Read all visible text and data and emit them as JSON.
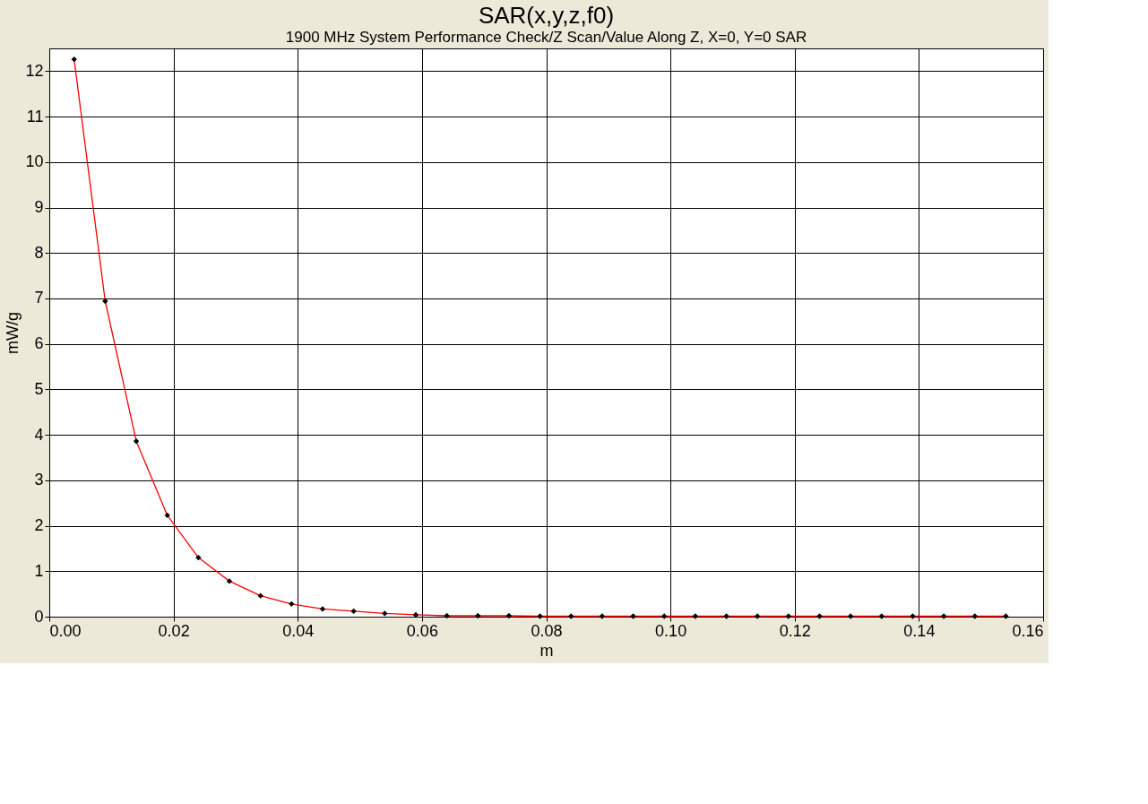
{
  "chart_data": {
    "type": "line",
    "title": "SAR(x,y,z,f0)",
    "subtitle": "1900 MHz System Performance Check/Z Scan/Value Along Z, X=0, Y=0 SAR",
    "xlabel": "m",
    "ylabel": "mW/g",
    "x": [
      0.004,
      0.009,
      0.014,
      0.019,
      0.024,
      0.029,
      0.034,
      0.039,
      0.044,
      0.049,
      0.054,
      0.059,
      0.064,
      0.069,
      0.074,
      0.079,
      0.084,
      0.089,
      0.094,
      0.099,
      0.104,
      0.109,
      0.114,
      0.119,
      0.124,
      0.129,
      0.134,
      0.139,
      0.144,
      0.149,
      0.154
    ],
    "series": [
      {
        "color": "#ff0000",
        "values": [
          12.26,
          6.94,
          3.86,
          2.23,
          1.3,
          0.78,
          0.46,
          0.28,
          0.17,
          0.12,
          0.07,
          0.04,
          0.02,
          0.02,
          0.02,
          0.01,
          0.01,
          0.01,
          0.01,
          0.01,
          0.01,
          0.01,
          0.01,
          0.01,
          0.01,
          0.01,
          0.01,
          0.01,
          0.01,
          0.01,
          0.01
        ]
      }
    ],
    "xlim": [
      0,
      0.16
    ],
    "xticks": [
      {
        "value": 0,
        "label": "0.00"
      },
      {
        "value": 0.02,
        "label": "0.02"
      },
      {
        "value": 0.04,
        "label": "0.04"
      },
      {
        "value": 0.06,
        "label": "0.06"
      },
      {
        "value": 0.08,
        "label": "0.08"
      },
      {
        "value": 0.1,
        "label": "0.10"
      },
      {
        "value": 0.12,
        "label": "0.12"
      },
      {
        "value": 0.14,
        "label": "0.14"
      },
      {
        "value": 0.16,
        "label": "0.16"
      }
    ],
    "ylim": [
      0,
      12.5
    ],
    "yticks": [
      0,
      1,
      2,
      3,
      4,
      5,
      6,
      7,
      8,
      9,
      10,
      11,
      12
    ],
    "grid": true,
    "marker": "diamond",
    "line_style": "solid"
  }
}
